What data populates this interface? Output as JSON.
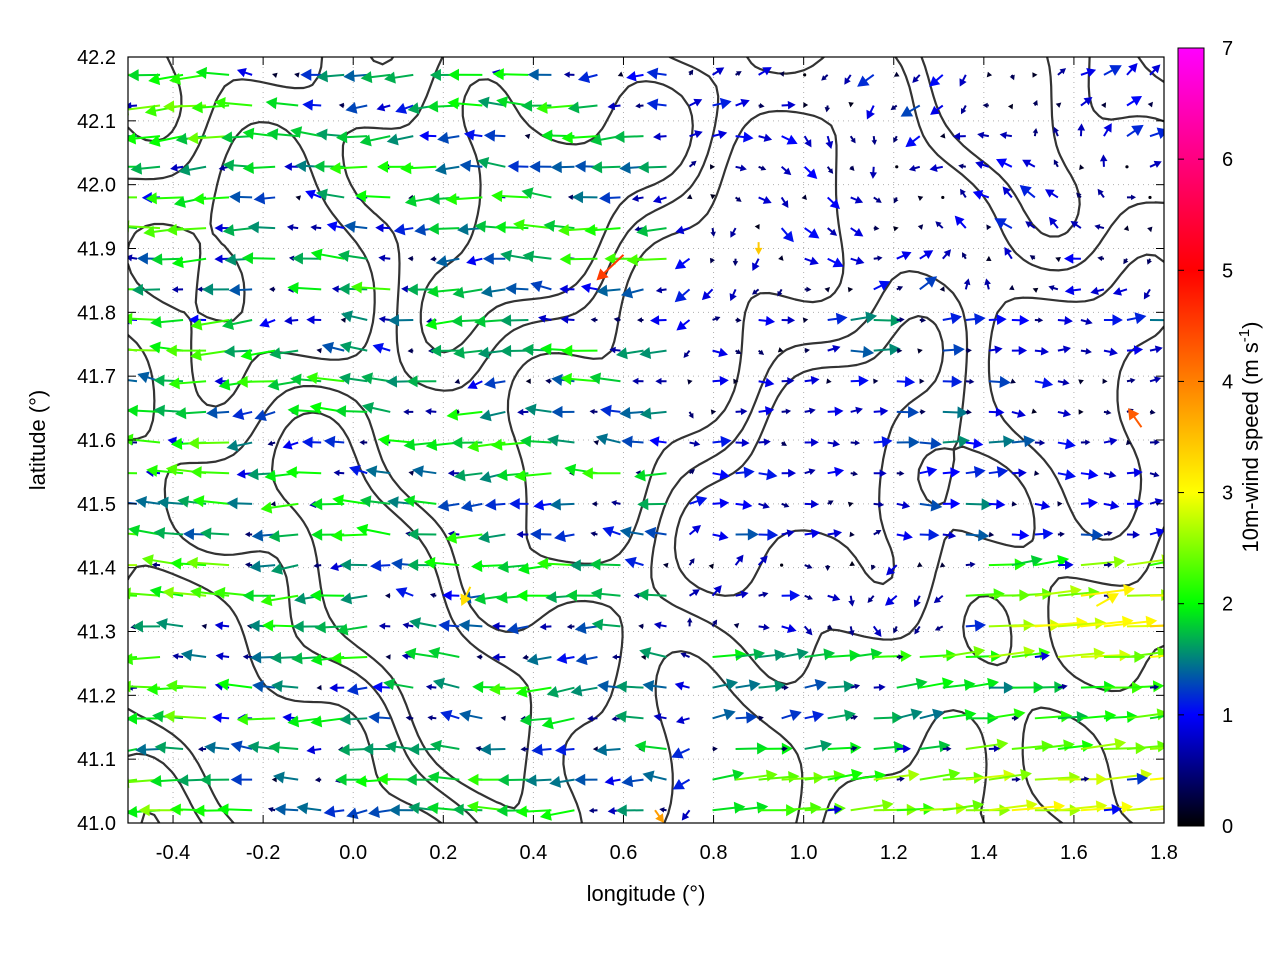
{
  "chart_data": {
    "type": "vector-field",
    "title": "",
    "xlabel": "longitude (°)",
    "ylabel": "latitude (°)",
    "xlim": [
      -0.5,
      1.8
    ],
    "ylim": [
      41.0,
      42.2
    ],
    "x_ticks": [
      "-0.4",
      "-0.2",
      "0.0",
      "0.2",
      "0.4",
      "0.6",
      "0.8",
      "1.0",
      "1.2",
      "1.4",
      "1.6",
      "1.8"
    ],
    "x_tick_values": [
      -0.4,
      -0.2,
      0.0,
      0.2,
      0.4,
      0.6,
      0.8,
      1.0,
      1.2,
      1.4,
      1.6,
      1.8
    ],
    "y_ticks": [
      "41.0",
      "41.1",
      "41.2",
      "41.3",
      "41.4",
      "41.5",
      "41.6",
      "41.7",
      "41.8",
      "41.9",
      "42.0",
      "42.1",
      "42.2"
    ],
    "y_tick_values": [
      41.0,
      41.1,
      41.2,
      41.3,
      41.4,
      41.5,
      41.6,
      41.7,
      41.8,
      41.9,
      42.0,
      42.1,
      42.2
    ],
    "grid": true,
    "colorbar": {
      "label_main": "10m-wind speed (m s",
      "label_sup": "-1",
      "label_end": ")",
      "range": [
        0,
        7
      ],
      "ticks": [
        "0",
        "1",
        "2",
        "3",
        "4",
        "5",
        "6",
        "7"
      ],
      "tick_values": [
        0,
        1,
        2,
        3,
        4,
        5,
        6,
        7
      ],
      "palette": [
        "#000000",
        "#0000ff",
        "#00ff00",
        "#ffff00",
        "#ff8000",
        "#ff0000",
        "#ff00ff"
      ]
    },
    "contour_color": "#333333",
    "wind_summary": {
      "west_half_direction": "westward",
      "central_band_direction": "eastward",
      "southeast_direction": "eastward",
      "typical_speed_range": [
        0,
        3
      ],
      "max_speed_seen": 5.5
    },
    "notable_vectors": [
      {
        "lon": 0.6,
        "lat": 41.89,
        "u": -0.06,
        "v": -0.04,
        "speed": 5.3
      },
      {
        "lon": 1.75,
        "lat": 41.62,
        "u": -0.03,
        "v": 0.03,
        "speed": 5.0
      },
      {
        "lon": 0.9,
        "lat": 41.91,
        "u": 0.0,
        "v": -0.02,
        "speed": 4.0
      },
      {
        "lon": 0.26,
        "lat": 41.37,
        "u": -0.02,
        "v": -0.03,
        "speed": 3.8
      },
      {
        "lon": 1.65,
        "lat": 41.34,
        "u": 0.05,
        "v": 0.02,
        "speed": 3.6
      },
      {
        "lon": 0.67,
        "lat": 41.02,
        "u": 0.02,
        "v": -0.02,
        "speed": 4.4
      }
    ]
  }
}
